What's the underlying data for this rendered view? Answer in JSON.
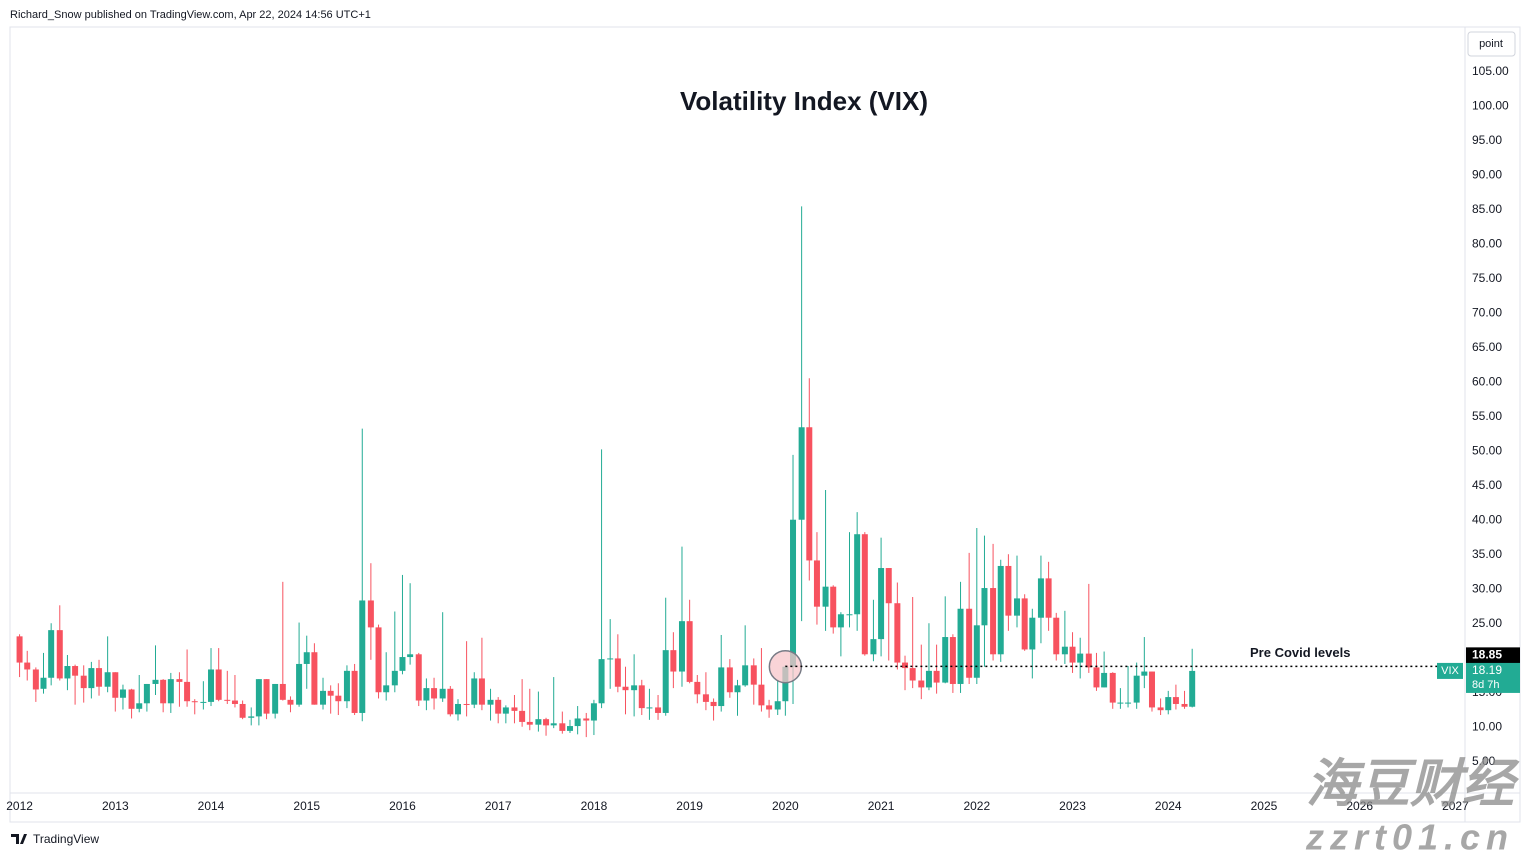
{
  "header": {
    "text": "Richard_Snow published on TradingView.com, Apr 22, 2024 14:56 UTC+1"
  },
  "toolbar": {
    "scale_button": "point"
  },
  "chart_data": {
    "type": "candlestick",
    "title": "Volatility Index (VIX)",
    "series": [
      {
        "name": "VIX",
        "up_color": "#22ab94",
        "down_color": "#f7525f",
        "x": [
          2012,
          2012.08,
          2012.17,
          2012.25,
          2012.33,
          2012.42,
          2012.5,
          2012.58,
          2012.67,
          2012.75,
          2012.83,
          2012.92,
          2013,
          2013.08,
          2013.17,
          2013.25,
          2013.33,
          2013.42,
          2013.5,
          2013.58,
          2013.67,
          2013.75,
          2013.83,
          2013.92,
          2014,
          2014.08,
          2014.17,
          2014.25,
          2014.33,
          2014.42,
          2014.5,
          2014.58,
          2014.67,
          2014.75,
          2014.83,
          2014.92,
          2015,
          2015.08,
          2015.17,
          2015.25,
          2015.33,
          2015.42,
          2015.5,
          2015.58,
          2015.67,
          2015.75,
          2015.83,
          2015.92,
          2016,
          2016.08,
          2016.17,
          2016.25,
          2016.33,
          2016.42,
          2016.5,
          2016.58,
          2016.67,
          2016.75,
          2016.83,
          2016.92,
          2017,
          2017.08,
          2017.17,
          2017.25,
          2017.33,
          2017.42,
          2017.5,
          2017.58,
          2017.67,
          2017.75,
          2017.83,
          2017.92,
          2018,
          2018.08,
          2018.17,
          2018.25,
          2018.33,
          2018.42,
          2018.5,
          2018.58,
          2018.67,
          2018.75,
          2018.83,
          2018.92,
          2019,
          2019.08,
          2019.17,
          2019.25,
          2019.33,
          2019.42,
          2019.5,
          2019.58,
          2019.67,
          2019.75,
          2019.83,
          2019.92,
          2020,
          2020.08,
          2020.17,
          2020.25,
          2020.33,
          2020.42,
          2020.5,
          2020.58,
          2020.67,
          2020.75,
          2020.83,
          2020.92,
          2021,
          2021.08,
          2021.17,
          2021.25,
          2021.33,
          2021.42,
          2021.5,
          2021.58,
          2021.67,
          2021.75,
          2021.83,
          2021.92,
          2022,
          2022.08,
          2022.17,
          2022.25,
          2022.33,
          2022.42,
          2022.5,
          2022.58,
          2022.67,
          2022.75,
          2022.83,
          2022.92,
          2023,
          2023.08,
          2023.17,
          2023.25,
          2023.33,
          2023.42,
          2023.5,
          2023.58,
          2023.67,
          2023.75,
          2023.83,
          2023.92,
          2024,
          2024.08,
          2024.17,
          2024.25
        ],
        "open": [
          23.2,
          19.4,
          18.4,
          15.6,
          17.2,
          24.1,
          17.1,
          18.9,
          17.5,
          15.7,
          18.6,
          15.9,
          18.0,
          14.3,
          15.5,
          12.7,
          13.5,
          16.3,
          16.9,
          13.5,
          17.0,
          16.6,
          13.8,
          13.7,
          13.7,
          18.4,
          14.0,
          13.9,
          13.4,
          11.4,
          11.6,
          17.0,
          12.0,
          16.3,
          14.0,
          13.3,
          19.2,
          20.9,
          13.3,
          15.3,
          14.6,
          13.8,
          18.2,
          12.1,
          28.4,
          24.5,
          15.1,
          16.1,
          18.2,
          20.2,
          20.6,
          13.9,
          15.7,
          14.2,
          15.6,
          11.9,
          13.4,
          13.3,
          17.1,
          13.3,
          14.0,
          12.0,
          12.9,
          12.4,
          10.8,
          10.4,
          11.2,
          10.3,
          10.6,
          9.5,
          10.2,
          11.3,
          11.0,
          13.5,
          19.9,
          20.0,
          15.9,
          15.4,
          16.1,
          12.8,
          12.9,
          12.1,
          21.2,
          18.1,
          25.4,
          16.6,
          14.8,
          13.7,
          13.1,
          18.7,
          15.1,
          16.1,
          19.0,
          16.2,
          13.2,
          12.6,
          13.8,
          18.8,
          40.1,
          53.5,
          34.2,
          27.5,
          30.4,
          24.5,
          26.4,
          26.4,
          38.0,
          20.6,
          22.8,
          33.1,
          28.0,
          19.4,
          18.6,
          16.8,
          15.8,
          18.2,
          16.5,
          23.1,
          16.3,
          27.2,
          17.2,
          24.8,
          30.2,
          20.6,
          33.4,
          26.2,
          28.7,
          21.3,
          25.9,
          31.6,
          25.9,
          20.6,
          21.7,
          19.4,
          20.7,
          18.7,
          15.8,
          17.9,
          13.6,
          13.6,
          13.6,
          17.5,
          18.1,
          12.9,
          12.5,
          14.4,
          13.4,
          13.0
        ],
        "high": [
          23.5,
          21.1,
          18.7,
          20.8,
          25.1,
          27.7,
          20.5,
          19.1,
          19.0,
          19.5,
          19.8,
          23.2,
          18.0,
          16.2,
          15.6,
          17.6,
          16.3,
          21.9,
          17.0,
          17.9,
          18.0,
          21.3,
          14.1,
          16.7,
          21.5,
          21.5,
          18.2,
          17.6,
          13.9,
          12.9,
          17.0,
          17.0,
          16.3,
          31.1,
          14.5,
          25.2,
          23.3,
          22.2,
          17.2,
          16.1,
          16.4,
          19.0,
          19.2,
          53.3,
          33.8,
          24.9,
          20.9,
          26.8,
          32.1,
          30.9,
          20.8,
          17.1,
          17.2,
          26.7,
          16.0,
          14.1,
          22.5,
          18.0,
          23.0,
          15.6,
          14.4,
          13.2,
          14.7,
          17.0,
          15.6,
          15.2,
          11.4,
          17.3,
          12.3,
          11.1,
          13.1,
          12.1,
          14.0,
          50.3,
          25.7,
          23.5,
          18.8,
          20.6,
          16.9,
          15.6,
          14.7,
          28.8,
          23.8,
          36.2,
          28.5,
          17.6,
          18.0,
          14.2,
          23.4,
          19.9,
          16.9,
          24.8,
          20.0,
          21.5,
          14.0,
          16.9,
          19.0,
          49.5,
          85.5,
          60.6,
          38.3,
          44.4,
          30.6,
          26.7,
          38.3,
          41.2,
          38.3,
          28.5,
          37.5,
          33.1,
          31.0,
          20.4,
          28.9,
          22.0,
          25.1,
          22.0,
          29.0,
          23.5,
          31.1,
          35.3,
          38.9,
          37.8,
          36.6,
          34.3,
          35.1,
          34.9,
          29.3,
          27.2,
          34.9,
          34.0,
          26.6,
          26.9,
          23.8,
          23.0,
          30.8,
          20.8,
          21.0,
          18.0,
          15.7,
          18.9,
          19.4,
          23.1,
          18.1,
          14.2,
          15.3,
          16.2,
          15.3,
          21.4
        ],
        "low": [
          17.3,
          16.8,
          13.7,
          14.9,
          16.1,
          16.8,
          15.4,
          13.3,
          13.6,
          14.2,
          14.6,
          15.1,
          12.3,
          12.6,
          11.3,
          12.2,
          12.3,
          14.7,
          12.2,
          12.1,
          13.0,
          13.0,
          11.9,
          12.6,
          13.1,
          13.8,
          13.4,
          12.9,
          11.2,
          10.3,
          10.3,
          11.2,
          11.3,
          13.9,
          12.2,
          13.0,
          15.6,
          13.3,
          12.6,
          12.0,
          11.8,
          12.8,
          11.8,
          10.9,
          19.8,
          14.2,
          13.9,
          15.1,
          17.7,
          19.1,
          13.1,
          12.5,
          12.6,
          13.7,
          11.6,
          11.0,
          11.6,
          12.8,
          12.5,
          11.0,
          10.6,
          10.6,
          10.6,
          10.1,
          9.6,
          9.4,
          8.8,
          9.9,
          9.1,
          9.2,
          9.0,
          8.6,
          8.9,
          12.8,
          15.6,
          15.1,
          11.9,
          11.6,
          11.8,
          11.1,
          11.1,
          11.7,
          15.7,
          15.9,
          16.4,
          13.5,
          12.5,
          11.0,
          12.3,
          14.3,
          11.7,
          15.9,
          13.3,
          12.3,
          11.4,
          11.8,
          11.7,
          13.4,
          25.4,
          31.3,
          24.9,
          24.0,
          23.6,
          20.3,
          24.5,
          24.0,
          20.4,
          19.6,
          20.3,
          19.7,
          18.4,
          15.4,
          15.7,
          14.1,
          15.4,
          14.9,
          16.4,
          15.0,
          15.0,
          16.3,
          16.3,
          18.8,
          19.7,
          19.5,
          24.0,
          24.5,
          21.1,
          17.1,
          22.2,
          24.0,
          19.7,
          19.2,
          17.9,
          17.1,
          17.9,
          15.3,
          15.8,
          12.7,
          12.7,
          12.9,
          12.7,
          15.7,
          12.3,
          11.8,
          11.9,
          12.6,
          12.7,
          12.9
        ],
        "close": [
          19.4,
          18.4,
          15.5,
          17.2,
          24.1,
          17.1,
          18.9,
          17.5,
          15.7,
          18.6,
          15.9,
          18.0,
          14.3,
          15.5,
          12.7,
          13.5,
          16.3,
          16.9,
          13.5,
          17.0,
          16.6,
          13.8,
          13.7,
          13.7,
          18.4,
          14.0,
          13.9,
          13.4,
          11.4,
          11.6,
          17.0,
          12.0,
          16.3,
          14.0,
          13.3,
          19.2,
          20.9,
          13.3,
          15.3,
          14.6,
          13.8,
          18.2,
          12.1,
          28.4,
          24.5,
          15.1,
          16.1,
          18.2,
          20.2,
          20.6,
          13.9,
          15.7,
          14.2,
          15.6,
          11.9,
          13.4,
          13.3,
          17.1,
          13.3,
          14.0,
          12.0,
          12.9,
          12.4,
          10.8,
          10.4,
          11.2,
          10.3,
          10.6,
          9.5,
          10.2,
          11.3,
          11.0,
          13.5,
          19.9,
          20.0,
          15.9,
          15.4,
          16.1,
          12.8,
          12.9,
          12.1,
          21.2,
          18.1,
          25.4,
          16.6,
          14.8,
          13.7,
          13.1,
          18.7,
          15.1,
          16.1,
          19.0,
          16.2,
          13.2,
          12.6,
          13.8,
          18.8,
          40.1,
          53.5,
          34.2,
          27.5,
          30.4,
          24.5,
          26.4,
          26.4,
          38.0,
          20.6,
          22.8,
          33.1,
          28.0,
          19.4,
          18.6,
          16.8,
          15.8,
          18.2,
          16.5,
          23.1,
          16.3,
          27.2,
          17.2,
          24.8,
          30.2,
          20.6,
          33.4,
          26.2,
          28.7,
          21.3,
          25.9,
          31.6,
          25.9,
          20.6,
          21.7,
          19.4,
          20.7,
          18.7,
          15.8,
          17.9,
          13.6,
          13.6,
          13.6,
          17.5,
          18.1,
          12.9,
          12.5,
          14.4,
          13.4,
          13.0,
          18.19
        ]
      }
    ],
    "xlim": [
      2011.9,
      2027.1
    ],
    "xticks": [
      2012,
      2013,
      2014,
      2015,
      2016,
      2017,
      2018,
      2019,
      2020,
      2021,
      2022,
      2023,
      2024,
      2025,
      2026,
      2027
    ],
    "ylim": [
      0.5,
      111.5
    ],
    "yticks": [
      {
        "value": 5,
        "label": "5.00"
      },
      {
        "value": 10,
        "label": "10.00"
      },
      {
        "value": 15,
        "label": "15.00"
      },
      {
        "value": 20,
        "label": "20.00"
      },
      {
        "value": 25,
        "label": "25.00"
      },
      {
        "value": 30,
        "label": "30.00"
      },
      {
        "value": 35,
        "label": "35.00"
      },
      {
        "value": 40,
        "label": "40.00"
      },
      {
        "value": 45,
        "label": "45.00"
      },
      {
        "value": 50,
        "label": "50.00"
      },
      {
        "value": 55,
        "label": "55.00"
      },
      {
        "value": 60,
        "label": "60.00"
      },
      {
        "value": 65,
        "label": "65.00"
      },
      {
        "value": 70,
        "label": "70.00"
      },
      {
        "value": 75,
        "label": "75.00"
      },
      {
        "value": 80,
        "label": "80.00"
      },
      {
        "value": 85,
        "label": "85.00"
      },
      {
        "value": 90,
        "label": "90.00"
      },
      {
        "value": 95,
        "label": "95.00"
      },
      {
        "value": 100,
        "label": "100.00"
      },
      {
        "value": 105,
        "label": "105.00"
      }
    ],
    "last_price": {
      "value": 18.19,
      "countdown": "8d 7h"
    },
    "reference_line": {
      "value": 18.85,
      "label": "Pre Covid levels",
      "color": "#000000"
    },
    "highlight": {
      "x": 2020,
      "y": 18.8,
      "color": "#f7c5c9"
    }
  },
  "footer": {
    "brand": "TradingView"
  },
  "watermark": {
    "text": "海豆财经",
    "url": "zzrt01.cn"
  }
}
